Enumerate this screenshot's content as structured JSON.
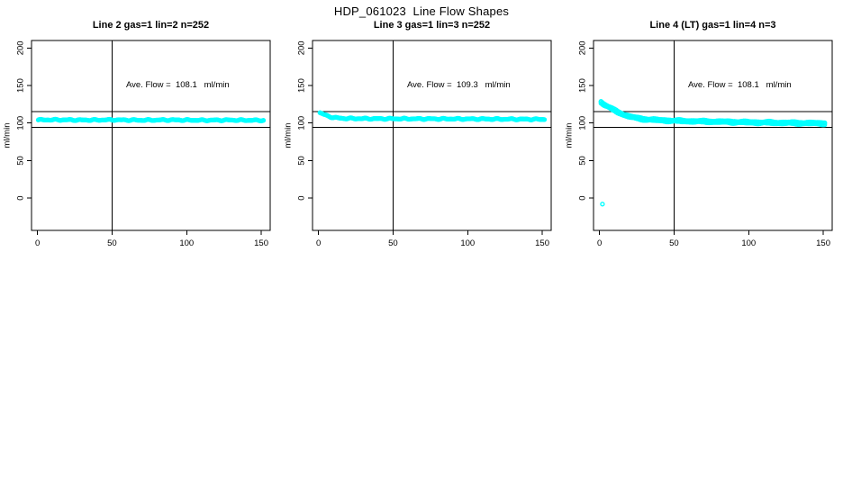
{
  "chart_data": {
    "type": "scatter",
    "title": "HDP_061023  Line Flow Shapes",
    "marker": {
      "shape": "open-circle",
      "color": "#00ffff",
      "radius_px": 2
    },
    "axes_shared": {
      "xlim": [
        -4,
        156
      ],
      "ylim": [
        -43,
        210
      ],
      "xticks": [
        0,
        50,
        100,
        150
      ],
      "yticks": [
        0,
        50,
        100,
        150,
        200
      ],
      "ylabel": "ml/min",
      "xlabel": "",
      "grid": false,
      "reference_hlines": [
        115.5,
        94.5
      ],
      "reference_vline": 50
    },
    "panels": [
      {
        "title": "Line 2 gas=1 lin=2 n=252",
        "annotation": {
          "text": "Ave. Flow =  108.1   ml/min",
          "x": 94,
          "y": 152
        },
        "ave_flow": "108.1",
        "unit": "ml/min",
        "points_per_trace": 252,
        "traces": 1,
        "trace_offset": 0,
        "x_range": [
          0.5,
          151.5
        ],
        "knots": [
          [
            0.5,
            104.2
          ],
          [
            15,
            104.4
          ],
          [
            30,
            104.0
          ],
          [
            50,
            104.3
          ],
          [
            70,
            103.9
          ],
          [
            90,
            104.2
          ],
          [
            110,
            103.8
          ],
          [
            130,
            104.0
          ],
          [
            151.5,
            103.6
          ]
        ],
        "outliers": []
      },
      {
        "title": "Line 3 gas=1 lin=3 n=252",
        "annotation": {
          "text": "Ave. Flow =  109.3   ml/min",
          "x": 94,
          "y": 152
        },
        "ave_flow": "109.3",
        "unit": "ml/min",
        "points_per_trace": 252,
        "traces": 1,
        "trace_offset": 0,
        "x_range": [
          1,
          151.5
        ],
        "knots": [
          [
            1,
            113.8
          ],
          [
            3,
            112
          ],
          [
            6,
            109.5
          ],
          [
            10,
            107.4
          ],
          [
            16,
            106.3
          ],
          [
            30,
            105.9
          ],
          [
            60,
            105.7
          ],
          [
            100,
            105.5
          ],
          [
            130,
            105.2
          ],
          [
            151.5,
            105.0
          ]
        ],
        "outliers": []
      },
      {
        "title": "Line 4 (LT) gas=1 lin=4 n=3",
        "annotation": {
          "text": "Ave. Flow =  108.1   ml/min",
          "x": 94,
          "y": 152
        },
        "ave_flow": "108.1",
        "unit": "ml/min",
        "points_per_trace": 150,
        "traces": 3,
        "trace_offset": 1.1,
        "x_range": [
          1,
          151
        ],
        "knots": [
          [
            1,
            128
          ],
          [
            3,
            125
          ],
          [
            6,
            121.5
          ],
          [
            9,
            118
          ],
          [
            12,
            115
          ],
          [
            16,
            111.5
          ],
          [
            20,
            108.8
          ],
          [
            25,
            106.5
          ],
          [
            31,
            105
          ],
          [
            40,
            103.8
          ],
          [
            55,
            102.8
          ],
          [
            75,
            102
          ],
          [
            100,
            101
          ],
          [
            130,
            100.2
          ],
          [
            151,
            99.6
          ]
        ],
        "outliers": [
          [
            2,
            -8
          ]
        ]
      }
    ]
  }
}
